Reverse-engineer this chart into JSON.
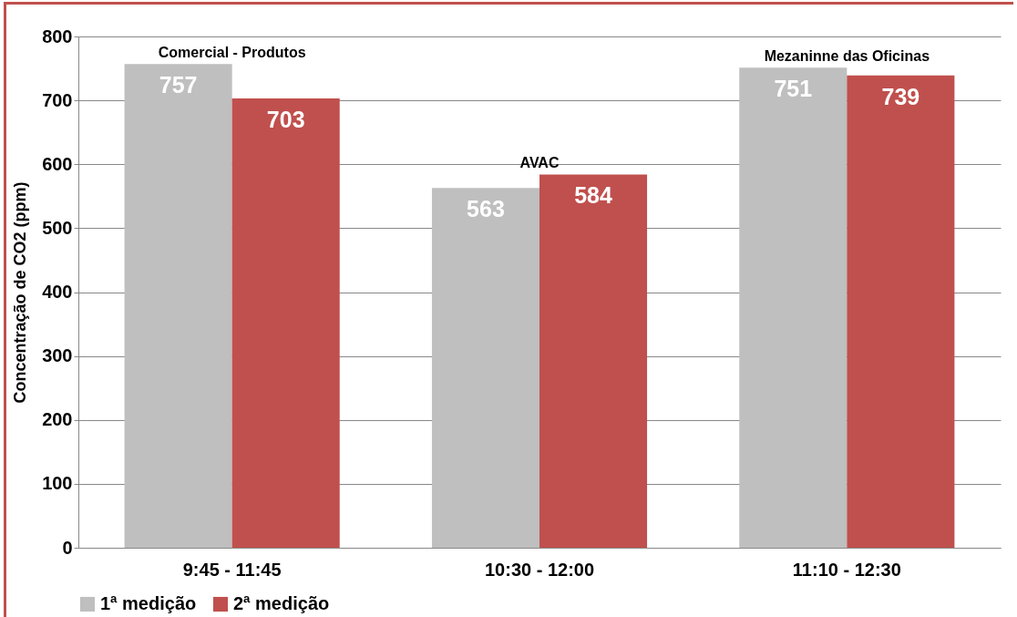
{
  "chart_data": {
    "type": "bar",
    "ylabel": "Concentração de CO2 (ppm)",
    "categories": [
      "9:45 - 11:45",
      "10:30 - 12:00",
      "11:10 - 12:30"
    ],
    "series": [
      {
        "name": "1ª medição",
        "color": "#bfbfbf",
        "values": [
          757,
          563,
          751
        ]
      },
      {
        "name": "2ª medição",
        "color": "#c0504d",
        "values": [
          703,
          584,
          739
        ]
      }
    ],
    "ylim": [
      0,
      800
    ],
    "yticks": [
      0,
      100,
      200,
      300,
      400,
      500,
      600,
      700,
      800
    ],
    "grid": "y",
    "legend": "bottom",
    "data_labels": true,
    "annotations": [
      {
        "text": "Comercial - Produtos",
        "x": "9:45 - 11:45",
        "y": 757
      },
      {
        "text": "AVAC",
        "x": "10:30 - 12:00",
        "y": 584
      },
      {
        "text": "Mezaninne das Oficinas",
        "x": "11:10 - 12:30",
        "y": 751
      }
    ]
  }
}
